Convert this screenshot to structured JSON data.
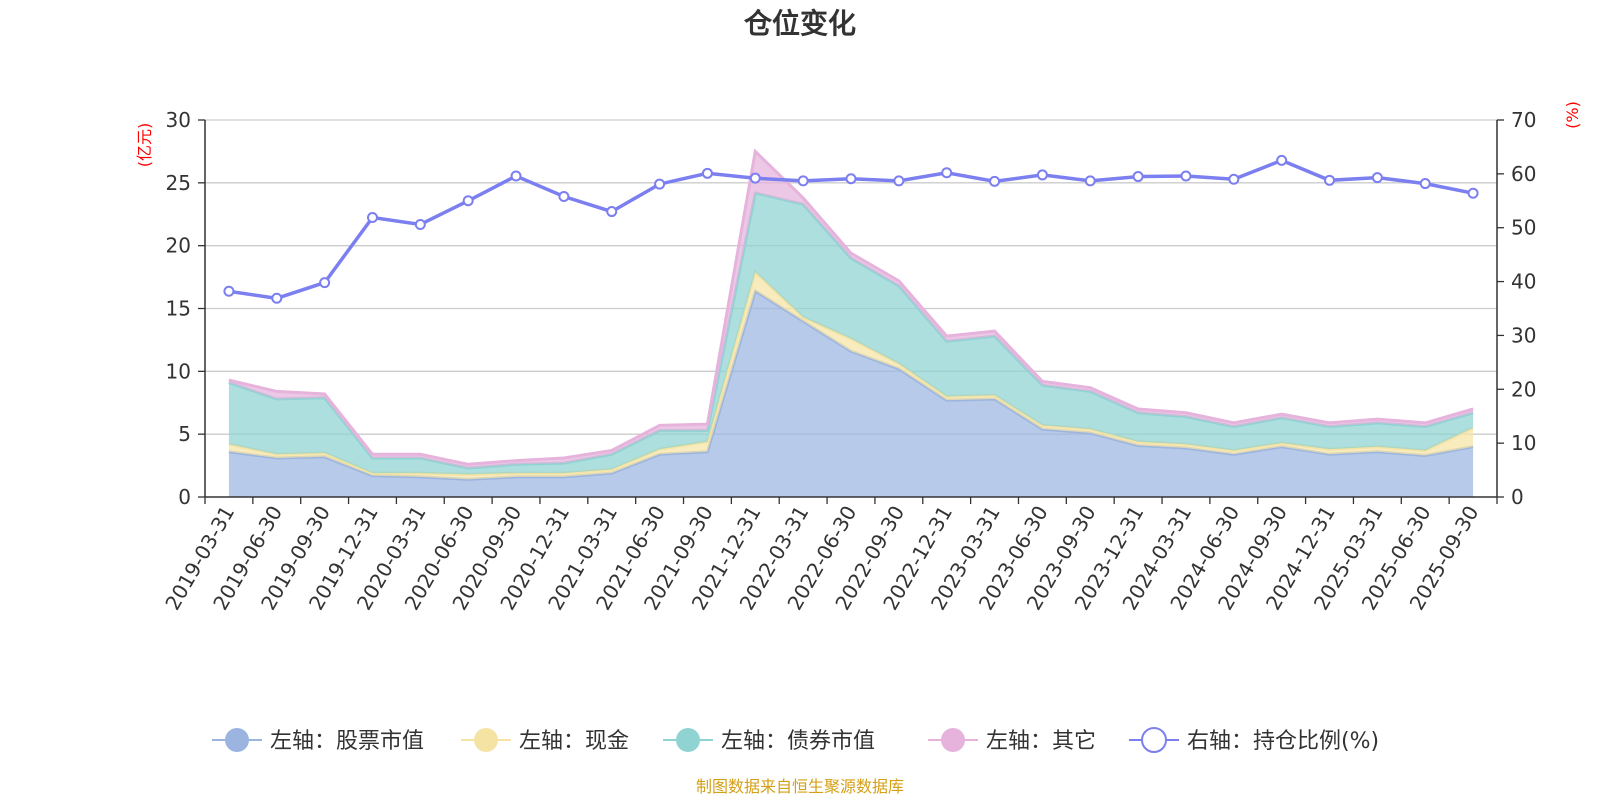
{
  "chart_data": {
    "type": "area",
    "title": "仓位变化",
    "left_axis_unit": "(亿元)",
    "right_axis_unit": "(%)",
    "ylim_left": [
      0,
      30
    ],
    "yticks_left": [
      "0",
      "5",
      "10",
      "15",
      "20",
      "25",
      "30"
    ],
    "ylim_right": [
      0,
      70
    ],
    "yticks_right": [
      "0",
      "10",
      "20",
      "30",
      "40",
      "50",
      "60",
      "70"
    ],
    "grid": true,
    "legend_position": "bottom",
    "categories": [
      "2019-03-31",
      "2019-06-30",
      "2019-09-30",
      "2019-12-31",
      "2020-03-31",
      "2020-06-30",
      "2020-09-30",
      "2020-12-31",
      "2021-03-31",
      "2021-06-30",
      "2021-09-30",
      "2021-12-31",
      "2022-03-31",
      "2022-06-30",
      "2022-09-30",
      "2022-12-31",
      "2023-03-31",
      "2023-06-30",
      "2023-09-30",
      "2023-12-31",
      "2024-03-31",
      "2024-06-30",
      "2024-09-30",
      "2024-12-31",
      "2025-03-31",
      "2025-06-30",
      "2025-09-30"
    ],
    "series": [
      {
        "name": "左轴：股票市值",
        "axis": "left",
        "type": "stacked-area",
        "color": "#9bb5e0",
        "values": [
          3.6,
          3.1,
          3.2,
          1.7,
          1.6,
          1.4,
          1.6,
          1.6,
          1.9,
          3.4,
          3.6,
          16.4,
          14.0,
          11.6,
          10.2,
          7.7,
          7.8,
          5.4,
          5.1,
          4.1,
          3.9,
          3.4,
          4.0,
          3.4,
          3.6,
          3.3,
          4.0
        ]
      },
      {
        "name": "左轴：现金",
        "axis": "left",
        "type": "stacked-area",
        "color": "#f5e3a3",
        "values": [
          0.6,
          0.3,
          0.3,
          0.2,
          0.3,
          0.4,
          0.3,
          0.3,
          0.3,
          0.4,
          0.8,
          1.5,
          0.3,
          1.0,
          0.4,
          0.3,
          0.3,
          0.3,
          0.3,
          0.3,
          0.3,
          0.3,
          0.3,
          0.4,
          0.4,
          0.4,
          1.5
        ]
      },
      {
        "name": "左轴：债券市值",
        "axis": "left",
        "type": "stacked-area",
        "color": "#8fd3d3",
        "values": [
          4.9,
          4.4,
          4.4,
          1.2,
          1.2,
          0.5,
          0.7,
          0.8,
          1.2,
          1.5,
          0.9,
          6.3,
          9.0,
          6.4,
          6.2,
          4.4,
          4.7,
          3.2,
          3.0,
          2.3,
          2.2,
          1.9,
          2.0,
          1.8,
          1.9,
          1.9,
          1.2
        ]
      },
      {
        "name": "左轴：其它",
        "axis": "left",
        "type": "stacked-area",
        "color": "#e6b3dd",
        "values": [
          0.2,
          0.6,
          0.3,
          0.3,
          0.3,
          0.3,
          0.3,
          0.4,
          0.3,
          0.4,
          0.5,
          3.3,
          0.5,
          0.4,
          0.4,
          0.4,
          0.4,
          0.3,
          0.3,
          0.3,
          0.3,
          0.3,
          0.3,
          0.3,
          0.3,
          0.3,
          0.3
        ]
      },
      {
        "name": "右轴：持仓比例(%)",
        "axis": "right",
        "type": "line",
        "color": "#7b7ff0",
        "values": [
          38.2,
          36.9,
          39.8,
          51.9,
          50.6,
          55.0,
          59.6,
          55.8,
          53.0,
          58.1,
          60.1,
          59.2,
          58.7,
          59.1,
          58.7,
          60.2,
          58.6,
          59.8,
          58.7,
          59.5,
          59.6,
          59.0,
          62.5,
          58.8,
          59.3,
          58.2,
          56.4
        ]
      }
    ],
    "source_note": "制图数据来自恒生聚源数据库",
    "colors": {
      "axis": "#333333",
      "grid": "#cccccc",
      "unit_label": "#ff0000",
      "source_note": "#d4a017"
    }
  }
}
